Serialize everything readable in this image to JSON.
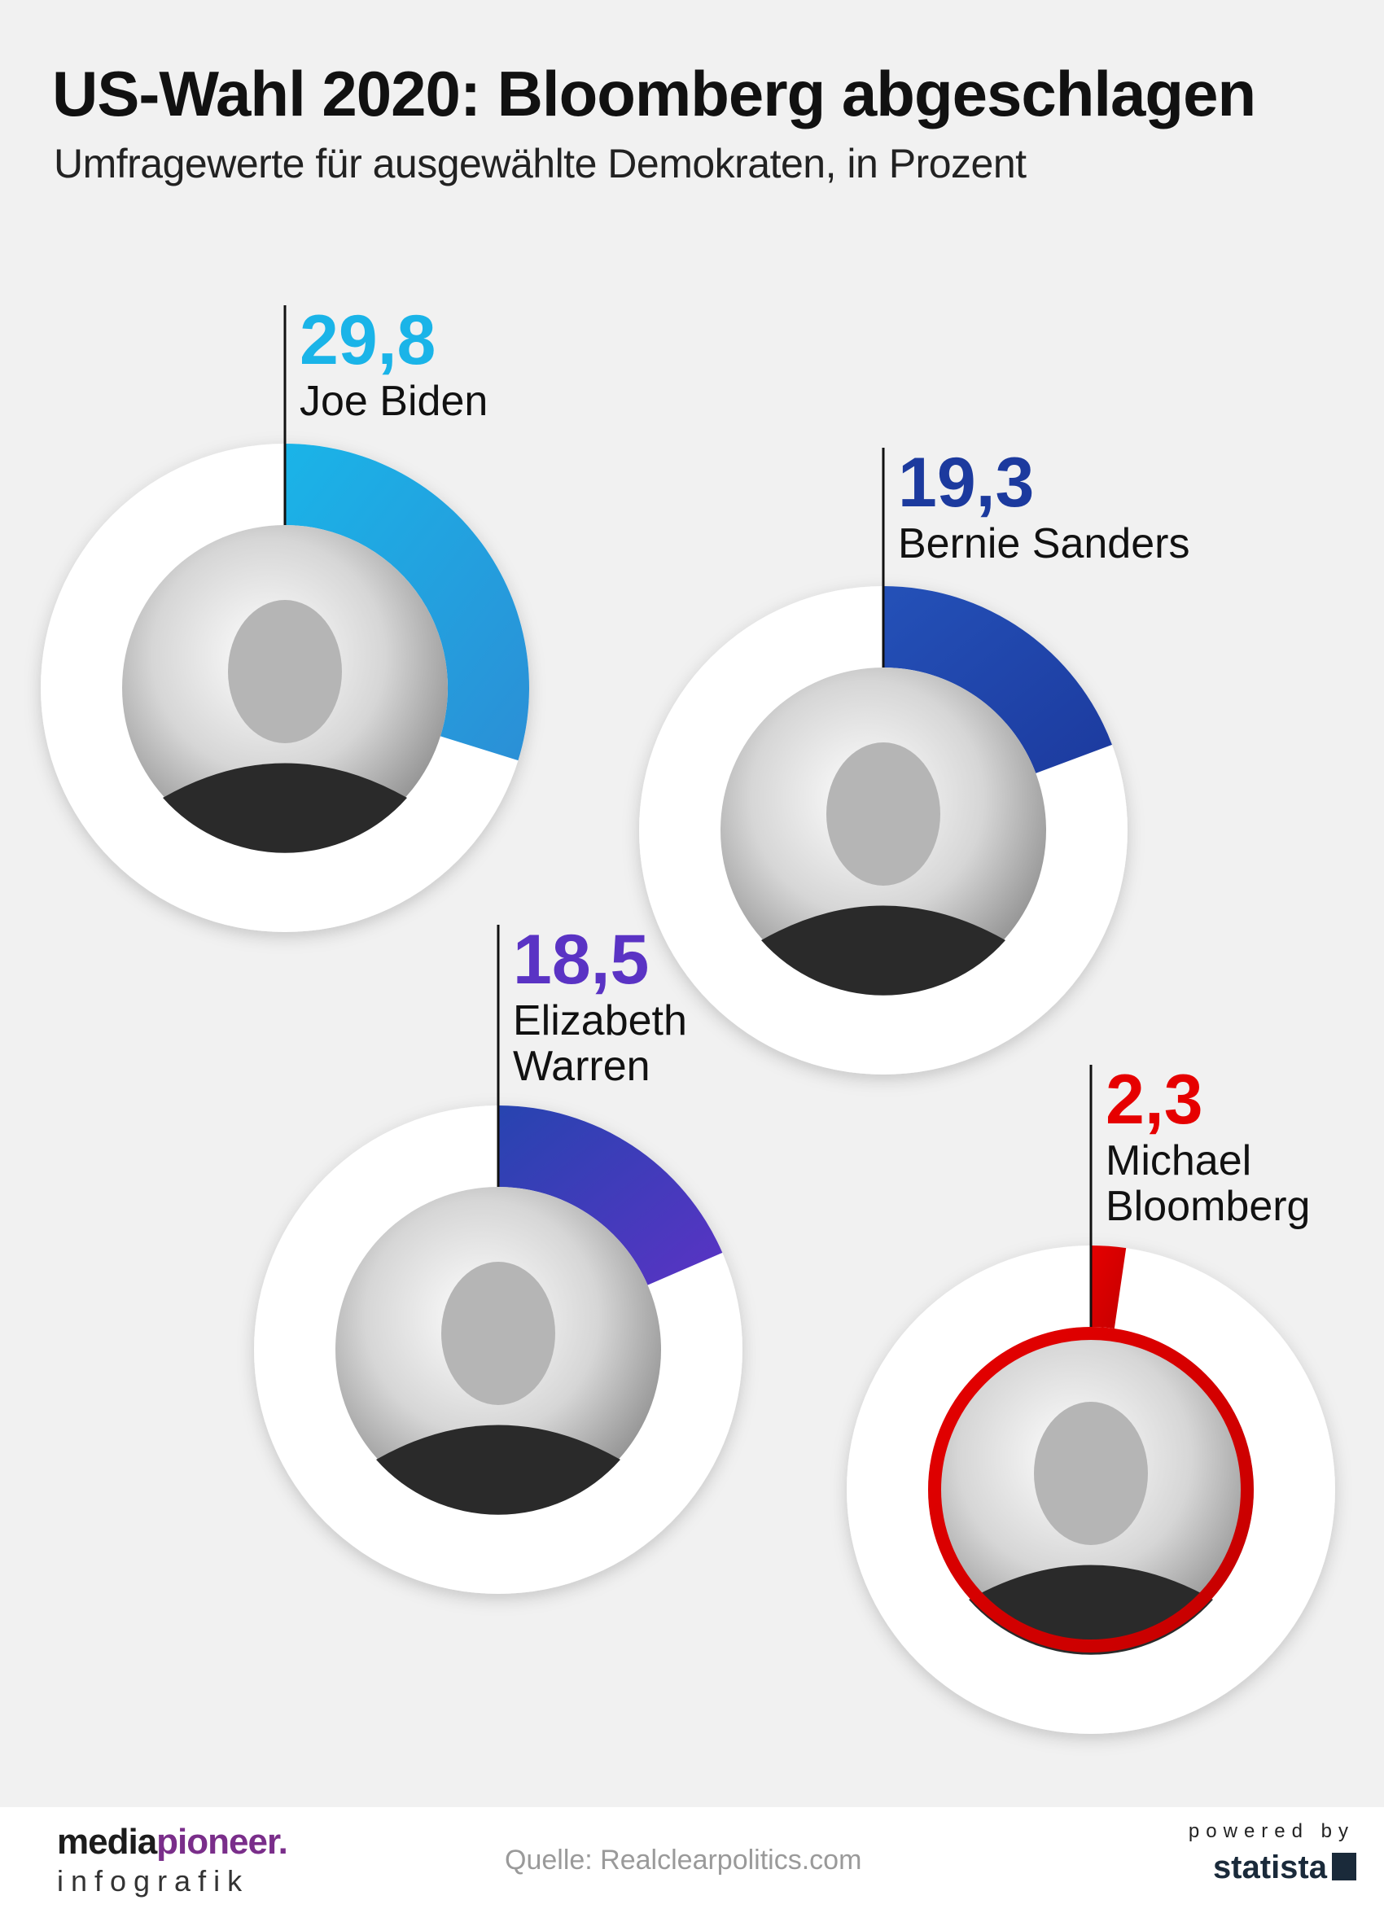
{
  "title": "US-Wahl 2020: Bloomberg abgeschlagen",
  "subtitle": "Umfragewerte für ausgewählte Demokraten, in Prozent",
  "chart_data": {
    "type": "pie",
    "title": "US-Wahl 2020: Bloomberg abgeschlagen",
    "subtitle": "Umfragewerte für ausgewählte Demokraten, in Prozent",
    "unit": "Prozent",
    "series": [
      {
        "name": "Joe Biden",
        "name_lines": [
          "Joe Biden"
        ],
        "value": 29.8,
        "value_label": "29,8",
        "color": "#1ab4e8",
        "color2": "#2b8fd6"
      },
      {
        "name": "Bernie Sanders",
        "name_lines": [
          "Bernie Sanders"
        ],
        "value": 19.3,
        "value_label": "19,3",
        "color": "#2451b8",
        "color2": "#1c3a9e"
      },
      {
        "name": "Elizabeth Warren",
        "name_lines": [
          "Elizabeth",
          "Warren"
        ],
        "value": 18.5,
        "value_label": "18,5",
        "color": "#2744b0",
        "color2": "#5a33c4"
      },
      {
        "name": "Michael Bloomberg",
        "name_lines": [
          "Michael",
          "Bloomberg"
        ],
        "value": 2.3,
        "value_label": "2,3",
        "color": "#e60000",
        "color2": "#c40000"
      }
    ]
  },
  "footer": {
    "brand_main": "media",
    "brand_accent": "pioneer.",
    "brand_sub": "infografik",
    "source": "Quelle: Realclearpolitics.com",
    "powered_by": "powered by",
    "statista": "statista"
  }
}
